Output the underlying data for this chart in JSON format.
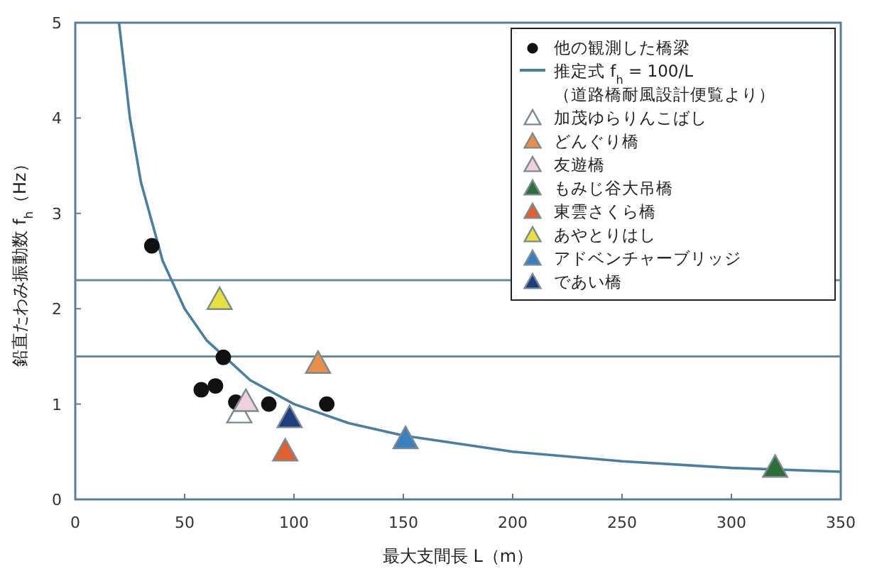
{
  "chart_data": {
    "type": "scatter",
    "xlabel": "最大支間長 L（m）",
    "ylabel": "鉛直たわみ振動数 f$_{h}$（Hz）",
    "xlim": [
      0,
      350
    ],
    "ylim": [
      0,
      5
    ],
    "xticks": [
      0,
      50,
      100,
      150,
      200,
      250,
      300,
      350
    ],
    "yticks": [
      0,
      1,
      2,
      3,
      4,
      5
    ],
    "legend": "top right",
    "annotations": [
      "（道路橋耐風設計便覧より）"
    ],
    "ref_lines": [
      {
        "axis": "y",
        "value": 2.3,
        "color": "#6a8a9a"
      },
      {
        "axis": "y",
        "value": 1.5,
        "color": "#6a8a9a"
      }
    ],
    "series": [
      {
        "name": "他の観測した橋梁",
        "type": "scatter",
        "marker": "circle",
        "color": "#111111",
        "x": [
          35,
          67.7,
          57.6,
          64.1,
          73.4,
          88.5,
          115
        ],
        "values": [
          2.66,
          1.49,
          1.15,
          1.19,
          1.02,
          1.0,
          1.0
        ]
      },
      {
        "name": "推定式 f$_{h}$ = 100/L",
        "type": "line",
        "marker": "none",
        "color": "#4a7fa0",
        "x": [
          20,
          25,
          30,
          40,
          50,
          60,
          80,
          100,
          125,
          150,
          200,
          250,
          300,
          350
        ],
        "values": [
          5,
          4,
          3.33,
          2.5,
          2,
          1.67,
          1.25,
          1,
          0.8,
          0.67,
          0.5,
          0.4,
          0.33,
          0.29
        ]
      },
      {
        "name": "加茂ゆらりんこばし",
        "type": "scatter",
        "marker": "triangle",
        "color": "#ffffff",
        "x": [
          75
        ],
        "values": [
          0.9
        ]
      },
      {
        "name": "どんぐり橋",
        "type": "scatter",
        "marker": "triangle",
        "color": "#e8904a",
        "x": [
          111
        ],
        "values": [
          1.42
        ]
      },
      {
        "name": "友遊橋",
        "type": "scatter",
        "marker": "triangle",
        "color": "#f0d0dc",
        "x": [
          78
        ],
        "values": [
          1.02
        ]
      },
      {
        "name": "もみじ谷大吊橋",
        "type": "scatter",
        "marker": "triangle",
        "color": "#2e6e3a",
        "x": [
          320
        ],
        "values": [
          0.33
        ]
      },
      {
        "name": "東雲さくら橋",
        "type": "scatter",
        "marker": "triangle",
        "color": "#e06030",
        "x": [
          96
        ],
        "values": [
          0.5
        ]
      },
      {
        "name": "あやとりはし",
        "type": "scatter",
        "marker": "triangle",
        "color": "#e8e040",
        "x": [
          66
        ],
        "values": [
          2.09
        ]
      },
      {
        "name": "アドベンチャーブリッジ",
        "type": "scatter",
        "marker": "triangle",
        "color": "#3a80c0",
        "x": [
          151
        ],
        "values": [
          0.63
        ]
      },
      {
        "name": "であい橋",
        "type": "scatter",
        "marker": "triangle",
        "color": "#1e3e80",
        "x": [
          98
        ],
        "values": [
          0.85
        ]
      }
    ]
  }
}
